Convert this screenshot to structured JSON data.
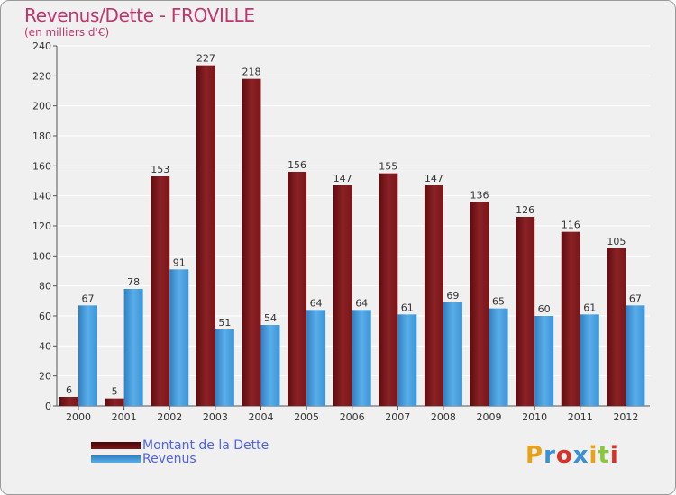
{
  "title": "Revenus/Dette - FROVILLE",
  "subtitle": "(en milliers d'€)",
  "brand": {
    "text": "Proxiti",
    "colors": [
      "#e8a21a",
      "#3a8fd6",
      "#d8312a",
      "#3a8fd6",
      "#e8a21a",
      "#8cc63e",
      "#d8312a"
    ]
  },
  "colors": {
    "dette": "#7a1518",
    "revenus": "#3b94d8",
    "title": "#c0356c",
    "legend_text": "#4f63e6"
  },
  "chart_data": {
    "type": "bar",
    "title": "Revenus/Dette - FROVILLE",
    "ylabel": "(en milliers d'€)",
    "xlabel": "",
    "ylim": [
      0,
      240
    ],
    "yticks": [
      0,
      20,
      40,
      60,
      80,
      100,
      120,
      140,
      160,
      180,
      200,
      220,
      240
    ],
    "grid": true,
    "legend_position": "bottom-left",
    "categories": [
      "2000",
      "2001",
      "2002",
      "2003",
      "2004",
      "2005",
      "2006",
      "2007",
      "2008",
      "2009",
      "2010",
      "2011",
      "2012"
    ],
    "series": [
      {
        "name": "Montant de la Dette",
        "values": [
          6,
          5,
          153,
          227,
          218,
          156,
          147,
          155,
          147,
          136,
          126,
          116,
          105
        ]
      },
      {
        "name": "Revenus",
        "values": [
          67,
          78,
          91,
          51,
          54,
          64,
          64,
          61,
          69,
          65,
          60,
          61,
          67
        ]
      }
    ]
  }
}
